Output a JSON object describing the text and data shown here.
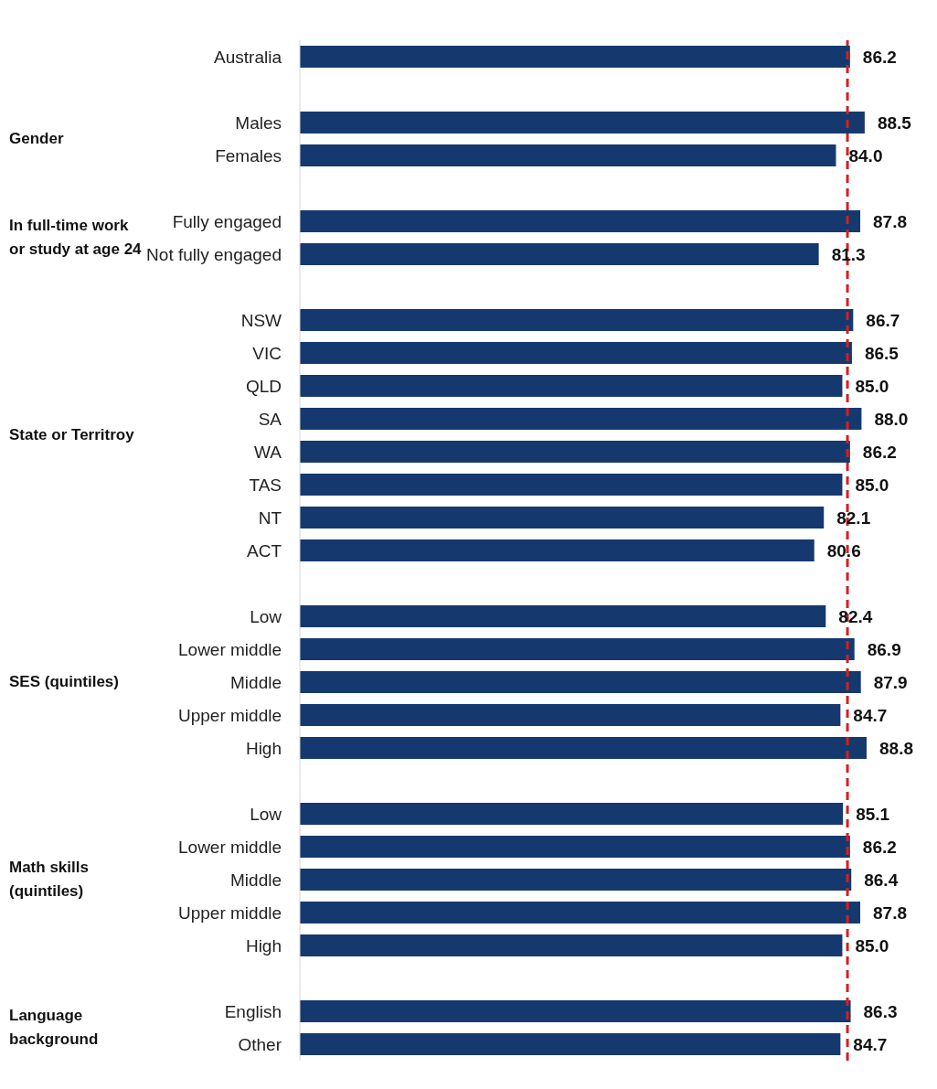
{
  "chart_data": {
    "type": "bar",
    "orientation": "horizontal",
    "categories": [
      "Australia",
      null,
      "Males",
      "Females",
      null,
      "Fully engaged",
      "Not fully engaged",
      null,
      "NSW",
      "VIC",
      "QLD",
      "SA",
      "WA",
      "TAS",
      "NT",
      "ACT",
      null,
      "Low",
      "Lower middle",
      "Middle",
      "Upper middle",
      "High",
      null,
      "Low",
      "Lower middle",
      "Middle",
      "Upper middle",
      "High",
      null,
      "English",
      "Other"
    ],
    "values": [
      86.2,
      null,
      88.5,
      84.0,
      null,
      87.8,
      81.3,
      null,
      86.7,
      86.5,
      85.0,
      88.0,
      86.2,
      85.0,
      82.1,
      80.6,
      null,
      82.4,
      86.9,
      87.9,
      84.7,
      88.8,
      null,
      85.1,
      86.2,
      86.4,
      87.8,
      85.0,
      null,
      86.3,
      84.7
    ],
    "color": "#15396f",
    "value_labels": [
      "86.2",
      null,
      "88.5",
      "84.0",
      null,
      "87.8",
      "81.3",
      null,
      "86.7",
      "86.5",
      "85.0",
      "88.0",
      "86.2",
      "85.0",
      "82.1",
      "80.6",
      null,
      "82.4",
      "86.9",
      "87.9",
      "84.7",
      "88.8",
      null,
      "85.1",
      "86.2",
      "86.4",
      "87.8",
      "85.0",
      null,
      "86.3",
      "84.7"
    ],
    "ref_lines": [
      {
        "axis": "x",
        "value": 85.8,
        "color": "#d42020",
        "line_style": "dashed"
      }
    ],
    "tick_labels": "y",
    "annotations": [
      "Gender",
      "In full-time work or study at age 24",
      "State or Territroy",
      "SES (quintiles)",
      "Math skills (quintiles)",
      "Language background"
    ]
  }
}
